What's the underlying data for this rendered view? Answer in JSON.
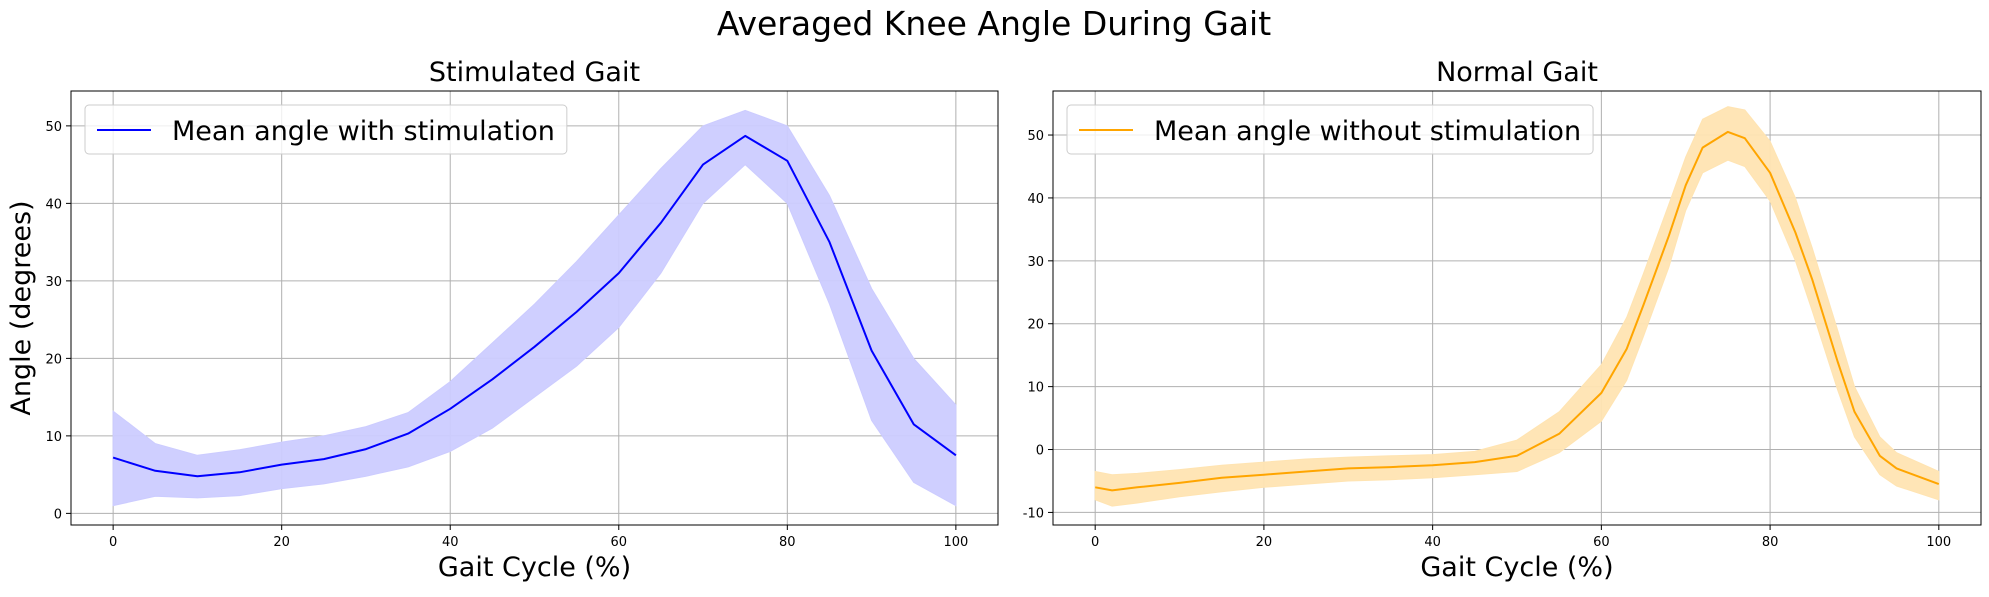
{
  "suptitle": "Averaged Knee Angle During Gait",
  "chart_data": [
    {
      "type": "line",
      "title": "Stimulated Gait",
      "xlabel": "Gait Cycle (%)",
      "ylabel": "Angle (degrees)",
      "xlim": [
        -5,
        105
      ],
      "ylim": [
        -1.5,
        54.5
      ],
      "xticks": [
        0,
        20,
        40,
        60,
        80,
        100
      ],
      "yticks": [
        0,
        10,
        20,
        30,
        40,
        50
      ],
      "grid": true,
      "legend_position": "top-left",
      "series": [
        {
          "name": "Mean angle with stimulation",
          "color": "#0000ff",
          "band_color": "#ccccff",
          "x": [
            0,
            5,
            10,
            15,
            20,
            25,
            30,
            35,
            40,
            45,
            50,
            55,
            60,
            65,
            70,
            75,
            80,
            85,
            90,
            95,
            100
          ],
          "y": [
            7.2,
            5.5,
            4.8,
            5.3,
            6.3,
            7.0,
            8.3,
            10.3,
            13.5,
            17.3,
            21.5,
            26.0,
            31.0,
            37.5,
            45.0,
            48.7,
            45.5,
            35.0,
            21.0,
            11.5,
            7.5
          ],
          "lower": [
            1.0,
            2.2,
            2.0,
            2.3,
            3.2,
            3.8,
            4.8,
            6.0,
            8.0,
            11.0,
            15.0,
            19.0,
            24.0,
            31.0,
            40.0,
            45.0,
            40.0,
            27.0,
            12.0,
            4.0,
            1.0
          ],
          "upper": [
            13.2,
            9.0,
            7.5,
            8.2,
            9.2,
            10.0,
            11.2,
            13.0,
            17.0,
            22.0,
            27.0,
            32.5,
            38.5,
            44.5,
            50.0,
            52.0,
            50.0,
            41.0,
            29.0,
            20.0,
            14.0
          ]
        }
      ]
    },
    {
      "type": "line",
      "title": "Normal Gait",
      "xlabel": "Gait Cycle (%)",
      "ylabel": "",
      "xlim": [
        -5,
        105
      ],
      "ylim": [
        -12,
        57
      ],
      "xticks": [
        0,
        20,
        40,
        60,
        80,
        100
      ],
      "yticks": [
        -10,
        0,
        10,
        20,
        30,
        40,
        50
      ],
      "grid": true,
      "legend_position": "top-left",
      "series": [
        {
          "name": "Mean angle without stimulation",
          "color": "#ffa500",
          "band_color": "#ffe4b2",
          "x": [
            0,
            2,
            5,
            10,
            15,
            20,
            25,
            30,
            35,
            40,
            45,
            50,
            55,
            60,
            63,
            65,
            68,
            70,
            72,
            75,
            77,
            80,
            83,
            85,
            88,
            90,
            93,
            95,
            100
          ],
          "y": [
            -6.0,
            -6.5,
            -6.0,
            -5.3,
            -4.5,
            -4.0,
            -3.5,
            -3.0,
            -2.8,
            -2.5,
            -2.0,
            -1.0,
            2.5,
            9.0,
            16.0,
            23.0,
            34.0,
            42.0,
            48.0,
            50.5,
            49.5,
            44.0,
            34.5,
            27.0,
            14.0,
            6.0,
            -1.0,
            -3.0,
            -5.5
          ],
          "lower": [
            -8.0,
            -9.0,
            -8.5,
            -7.5,
            -6.7,
            -6.0,
            -5.5,
            -5.0,
            -4.8,
            -4.5,
            -4.0,
            -3.5,
            -0.5,
            4.5,
            11.0,
            18.0,
            29.0,
            38.0,
            44.0,
            46.0,
            45.0,
            39.5,
            30.0,
            22.0,
            9.5,
            2.0,
            -4.0,
            -5.8,
            -8.0
          ],
          "upper": [
            -3.5,
            -4.0,
            -3.8,
            -3.2,
            -2.5,
            -2.0,
            -1.5,
            -1.2,
            -1.0,
            -0.8,
            -0.3,
            1.5,
            6.0,
            13.5,
            21.0,
            28.0,
            39.0,
            46.5,
            52.5,
            54.5,
            54.0,
            49.0,
            40.0,
            32.0,
            19.0,
            10.0,
            2.0,
            -0.5,
            -3.5
          ]
        }
      ]
    }
  ]
}
